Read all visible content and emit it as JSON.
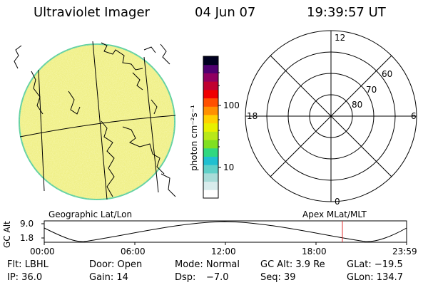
{
  "header": {
    "title": "Ultraviolet Imager",
    "date": "04 Jun 07",
    "time": "19:39:57 UT"
  },
  "colorbar": {
    "unit_label": "photon cm⁻²s⁻¹",
    "ticks": [
      "100",
      "10"
    ],
    "colors": [
      "#ffffff",
      "#d8ecec",
      "#a8dcd8",
      "#60d0c8",
      "#20c0d0",
      "#30d880",
      "#80e020",
      "#b8e818",
      "#e8f000",
      "#ffd000",
      "#ff9000",
      "#ff5000",
      "#f00000",
      "#c00030",
      "#900060",
      "#500070",
      "#000020"
    ]
  },
  "left_panel": {
    "label": "Geographic Lat/Lon",
    "disk_color": "#f0f088",
    "disk_edge_color": "#60d0a0"
  },
  "right_panel": {
    "label": "Apex MLat/MLT",
    "mlt_labels": {
      "top": "12",
      "bottom": "0",
      "left": "18",
      "right": "6"
    },
    "lat_labels": [
      "60",
      "70",
      "80"
    ]
  },
  "timeline": {
    "axis_title": "GC Alt",
    "y_ticks": [
      "9.0",
      "1.8"
    ],
    "x_ticks": [
      "00:00",
      "06:00",
      "12:00",
      "18:00",
      "23:59"
    ],
    "marker_color": "#e03030"
  },
  "info": {
    "row1": {
      "filter": "Flt: LBHL",
      "door": "Door: Open",
      "mode": "Mode: Normal",
      "gc_alt": "GC Alt: 3.9 Re",
      "glat": "GLat: −19.5"
    },
    "row2": {
      "ip": "IP: 36.0",
      "gain": "Gain: 14",
      "dsp_label": "Dsp:",
      "dsp_value": "−7.0",
      "seq": "Seq: 39",
      "glon": "GLon: 134.7"
    }
  }
}
